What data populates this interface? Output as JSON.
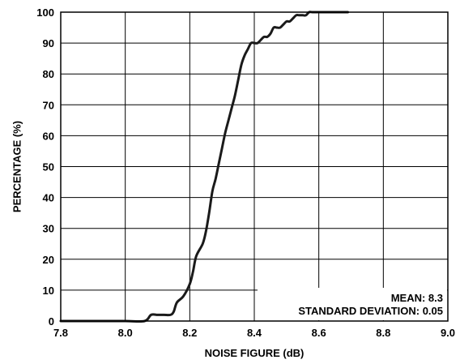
{
  "chart_data": {
    "type": "line",
    "xlabel": "NOISE FIGURE (dB)",
    "ylabel": "PERCENTAGE (%)",
    "xlim": [
      7.8,
      9.0
    ],
    "ylim": [
      0,
      100
    ],
    "x_ticks": [
      "7.8",
      "8.0",
      "8.2",
      "8.4",
      "8.6",
      "8.8",
      "9.0"
    ],
    "y_ticks": [
      "0",
      "10",
      "20",
      "30",
      "40",
      "50",
      "60",
      "70",
      "80",
      "90",
      "100"
    ],
    "grid": true,
    "line_color": "#1a1a1a",
    "annotations": [
      "MEAN: 8.3",
      "STANDARD DEVIATION: 0.05"
    ],
    "series": [
      {
        "x": [
          7.8,
          7.9,
          8.0,
          8.06,
          8.08,
          8.1,
          8.12,
          8.14,
          8.15,
          8.16,
          8.18,
          8.2,
          8.21,
          8.22,
          8.24,
          8.25,
          8.26,
          8.27,
          8.28,
          8.29,
          8.3,
          8.31,
          8.32,
          8.33,
          8.34,
          8.35,
          8.36,
          8.37,
          8.38,
          8.39,
          8.4,
          8.41,
          8.42,
          8.43,
          8.44,
          8.45,
          8.46,
          8.47,
          8.48,
          8.49,
          8.5,
          8.51,
          8.52,
          8.53,
          8.54,
          8.55,
          8.56,
          8.57,
          8.58,
          8.6,
          8.65,
          8.69
        ],
        "y": [
          0,
          0,
          0,
          0,
          2,
          2,
          2,
          2,
          3,
          6,
          8,
          12,
          16,
          21,
          25,
          29,
          35,
          42,
          46,
          51,
          56,
          61,
          65,
          69,
          73,
          78,
          83,
          86,
          88,
          90,
          90,
          90,
          91,
          92,
          92,
          93,
          95,
          95,
          95,
          96,
          97,
          97,
          98,
          99,
          99,
          99,
          99,
          100,
          100,
          100,
          100,
          100
        ]
      }
    ]
  }
}
